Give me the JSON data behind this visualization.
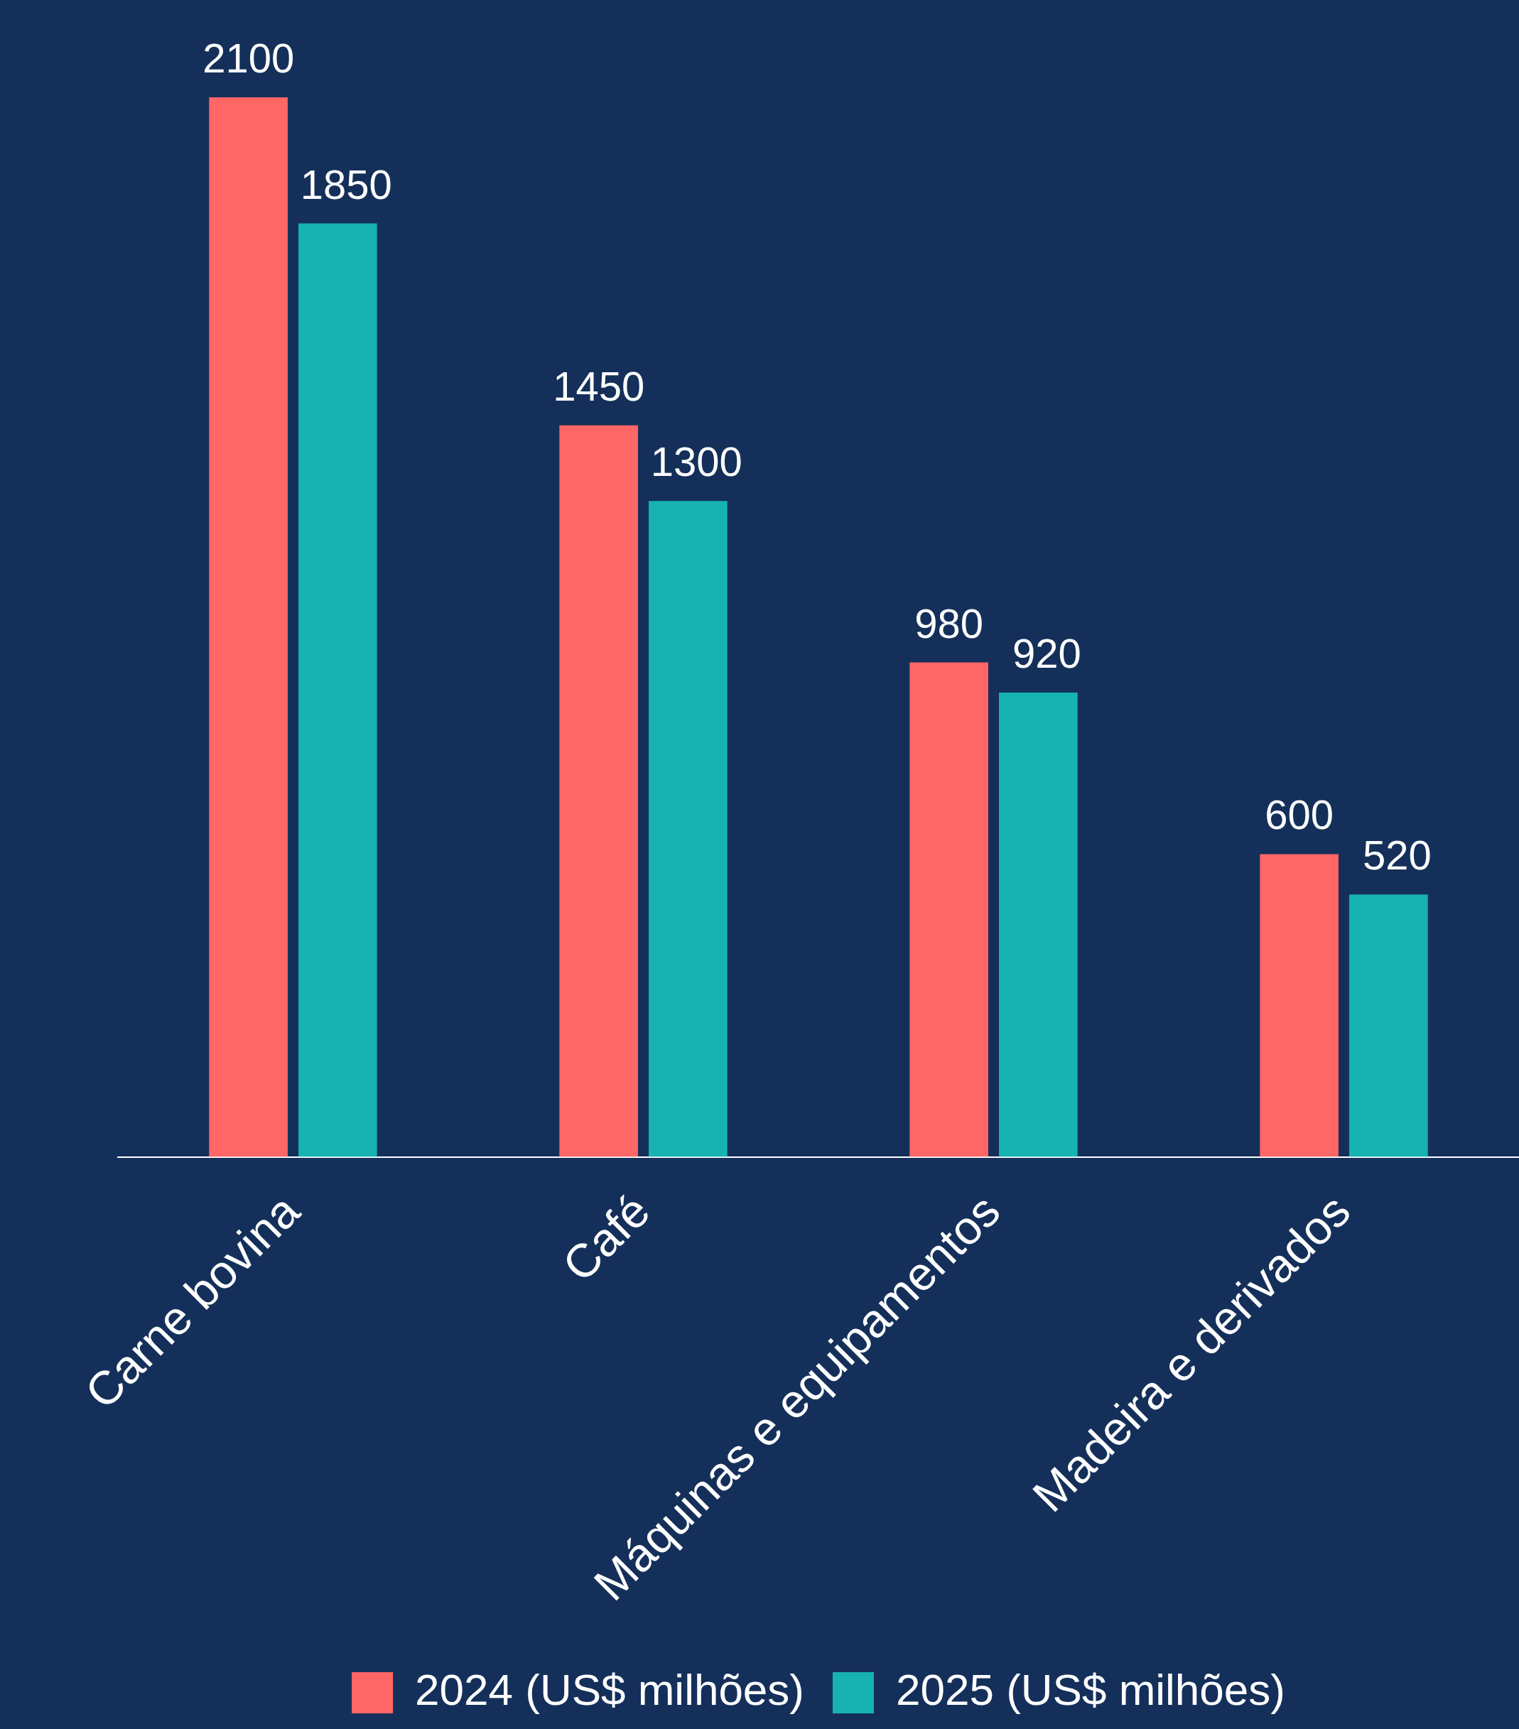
{
  "chart_data": {
    "type": "bar",
    "categories": [
      "Carne bovina",
      "Café",
      "Máquinas e equipamentos",
      "Madeira e derivados"
    ],
    "series": [
      {
        "name": "2024 (US$ milhões)",
        "color": "#ff6666",
        "values": [
          2100,
          1450,
          980,
          600
        ]
      },
      {
        "name": "2025 (US$ milhões)",
        "color": "#17b3b0",
        "values": [
          1850,
          1300,
          920,
          520
        ]
      }
    ],
    "data_labels": true,
    "grid": false,
    "legend": "bottom"
  }
}
